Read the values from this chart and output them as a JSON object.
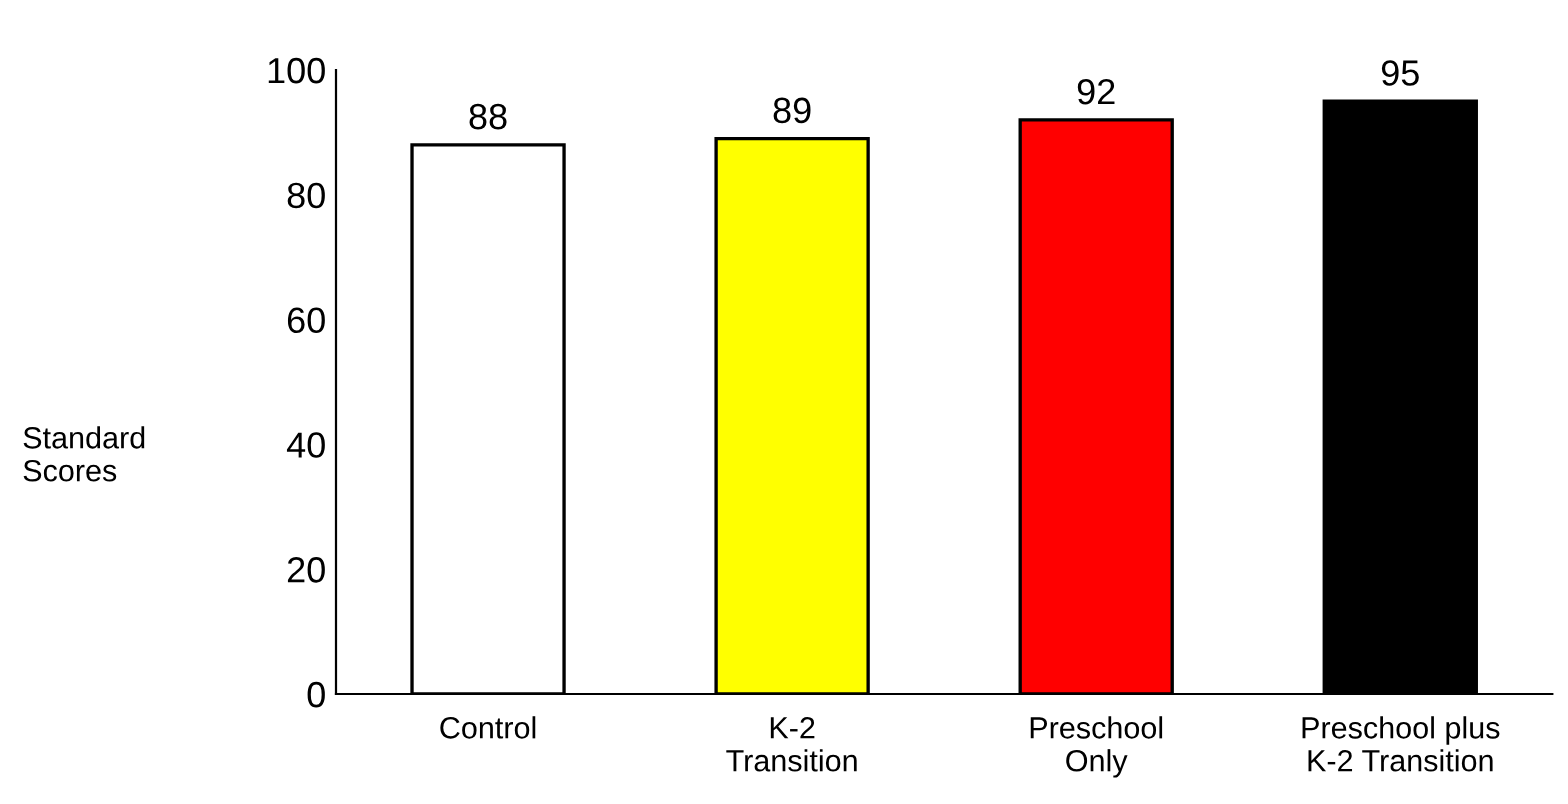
{
  "chart_data": {
    "type": "bar",
    "ylabel": "Standard\nScores",
    "categories": [
      "Control",
      "K-2\nTransition",
      "Preschool\nOnly",
      "Preschool plus\nK-2 Transition"
    ],
    "values": [
      88,
      89,
      92,
      95
    ],
    "colors": [
      "#ffffff",
      "#ffff00",
      "#ff0000",
      "#000000"
    ],
    "ylim": [
      0,
      100
    ],
    "yticks": [
      0,
      20,
      40,
      60,
      80,
      100
    ],
    "grid": false,
    "data_labels": true
  }
}
